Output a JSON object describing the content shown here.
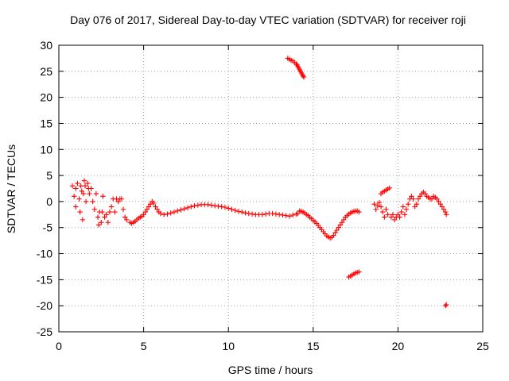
{
  "chart_data": {
    "type": "scatter",
    "title": "Day 076 of 2017, Sidereal Day-to-day VTEC variation (SDTVAR) for receiver roji",
    "xlabel": "GPS time / hours",
    "ylabel": "SDTVAR / TECUs",
    "xlim": [
      0,
      25
    ],
    "ylim": [
      -25,
      30
    ],
    "xticks": [
      "0",
      "5",
      "10",
      "15",
      "20",
      "25"
    ],
    "yticks": [
      "30",
      "25",
      "20",
      "15",
      "10",
      "5",
      "0",
      "-5",
      "-10",
      "-15",
      "-20",
      "-25"
    ],
    "grid": true,
    "marker": "+",
    "series": [
      {
        "name": "SDTVAR",
        "color": "#ff0000",
        "x": [
          0.8,
          0.9,
          1.0,
          1.0,
          1.1,
          1.2,
          1.25,
          1.3,
          1.35,
          1.4,
          1.45,
          1.5,
          1.55,
          1.6,
          1.7,
          1.75,
          1.8,
          1.9,
          2.0,
          2.1,
          2.2,
          2.3,
          2.35,
          2.4,
          2.5,
          2.55,
          2.6,
          2.7,
          2.8,
          2.9,
          3.0,
          3.1,
          3.2,
          3.3,
          3.4,
          3.5,
          3.6,
          3.7,
          3.8,
          3.9,
          4.0,
          4.2,
          4.3,
          4.4,
          4.5,
          4.6,
          4.7,
          4.8,
          4.9,
          5.0,
          5.1,
          5.2,
          5.3,
          5.4,
          5.5,
          5.6,
          5.7,
          5.8,
          5.9,
          6.0,
          6.2,
          6.4,
          6.6,
          6.8,
          7.0,
          7.2,
          7.4,
          7.6,
          7.8,
          8.0,
          8.2,
          8.4,
          8.6,
          8.8,
          9.0,
          9.2,
          9.4,
          9.6,
          9.8,
          10.0,
          10.2,
          10.4,
          10.6,
          10.8,
          11.0,
          11.2,
          11.4,
          11.6,
          11.8,
          12.0,
          12.2,
          12.4,
          12.6,
          12.8,
          13.0,
          13.2,
          13.4,
          13.6,
          13.8,
          14.0,
          14.1,
          14.2,
          14.3,
          14.4,
          14.5,
          14.6,
          14.7,
          14.8,
          14.9,
          15.0,
          15.1,
          15.2,
          15.3,
          15.4,
          15.5,
          15.6,
          15.7,
          15.8,
          15.9,
          16.0,
          16.1,
          16.2,
          16.3,
          16.4,
          16.5,
          16.6,
          16.7,
          16.8,
          16.9,
          17.0,
          17.1,
          17.2,
          17.3,
          17.4,
          17.5,
          17.6,
          17.7,
          13.5,
          13.6,
          13.7,
          13.8,
          13.9,
          14.0,
          14.05,
          14.1,
          14.15,
          14.2,
          14.25,
          14.3,
          14.35,
          14.4,
          14.45,
          17.1,
          17.2,
          17.3,
          17.4,
          17.5,
          17.6,
          17.7,
          18.6,
          18.7,
          18.8,
          18.9,
          19.0,
          19.1,
          19.2,
          19.3,
          19.4,
          19.0,
          19.1,
          19.2,
          19.3,
          19.4,
          19.5,
          19.6,
          19.7,
          19.8,
          19.9,
          20.0,
          20.1,
          20.2,
          20.3,
          20.4,
          20.5,
          20.6,
          20.7,
          20.8,
          20.9,
          21.0,
          21.1,
          21.2,
          21.3,
          21.4,
          21.5,
          21.6,
          21.7,
          21.8,
          21.9,
          22.0,
          22.1,
          22.2,
          22.3,
          22.4,
          22.5,
          22.6,
          22.7,
          22.8,
          22.85,
          22.8,
          22.85
        ],
        "y": [
          3.0,
          1.0,
          2.5,
          -1.0,
          3.5,
          0.5,
          -2.0,
          3.0,
          2.0,
          -3.5,
          1.5,
          4.0,
          3.0,
          0.0,
          3.5,
          2.5,
          1.5,
          2.5,
          0.0,
          -1.5,
          1.5,
          -3.0,
          -4.5,
          -2.0,
          -4.0,
          -2.0,
          1.0,
          -3.0,
          -2.5,
          -4.0,
          -2.0,
          -1.0,
          0.5,
          -2.0,
          0.5,
          0.0,
          0.5,
          0.5,
          -1.5,
          -3.0,
          -3.5,
          -4.0,
          -4.2,
          -4.0,
          -3.8,
          -3.5,
          -3.2,
          -3.0,
          -2.8,
          -2.5,
          -2.0,
          -1.5,
          -1.0,
          -0.5,
          0.0,
          -0.3,
          -1.0,
          -1.5,
          -2.0,
          -2.3,
          -2.5,
          -2.4,
          -2.2,
          -2.0,
          -1.8,
          -1.6,
          -1.4,
          -1.2,
          -1.0,
          -0.8,
          -0.7,
          -0.6,
          -0.6,
          -0.6,
          -0.7,
          -0.8,
          -0.9,
          -1.0,
          -1.1,
          -1.3,
          -1.5,
          -1.7,
          -1.9,
          -2.0,
          -2.2,
          -2.3,
          -2.4,
          -2.5,
          -2.5,
          -2.5,
          -2.4,
          -2.3,
          -2.3,
          -2.4,
          -2.5,
          -2.6,
          -2.7,
          -2.8,
          -2.6,
          -2.4,
          -2.3,
          -1.8,
          -1.9,
          -2.0,
          -2.2,
          -2.5,
          -2.7,
          -3.0,
          -3.3,
          -3.6,
          -3.9,
          -4.2,
          -4.6,
          -5.0,
          -5.4,
          -5.8,
          -6.2,
          -6.6,
          -6.8,
          -7.0,
          -6.9,
          -6.5,
          -6.0,
          -5.5,
          -5.0,
          -4.5,
          -4.0,
          -3.5,
          -3.0,
          -2.7,
          -2.4,
          -2.2,
          -2.0,
          -1.9,
          -1.8,
          -1.8,
          -2.0,
          27.5,
          27.3,
          27.1,
          27.0,
          26.7,
          26.4,
          26.2,
          25.9,
          25.6,
          25.3,
          25.0,
          24.7,
          24.4,
          24.1,
          23.9,
          -14.5,
          -14.3,
          -14.1,
          -13.9,
          -13.7,
          -13.6,
          -13.5,
          -0.5,
          -1.5,
          -0.8,
          -0.2,
          -1.0,
          -2.0,
          -3.0,
          -1.5,
          -2.5,
          1.5,
          1.8,
          2.0,
          2.2,
          2.4,
          2.6,
          -3.0,
          -2.5,
          -3.5,
          -3.0,
          -2.5,
          -3.0,
          -2.0,
          -1.0,
          -2.5,
          -1.5,
          -0.5,
          0.5,
          1.0,
          0.5,
          -1.0,
          -0.5,
          0.5,
          1.0,
          1.5,
          1.8,
          1.5,
          1.0,
          0.8,
          0.5,
          0.5,
          1.0,
          0.8,
          0.5,
          0.0,
          -0.5,
          -1.0,
          -1.5,
          -2.0,
          -2.5,
          -20.0,
          -19.8
        ]
      }
    ]
  }
}
